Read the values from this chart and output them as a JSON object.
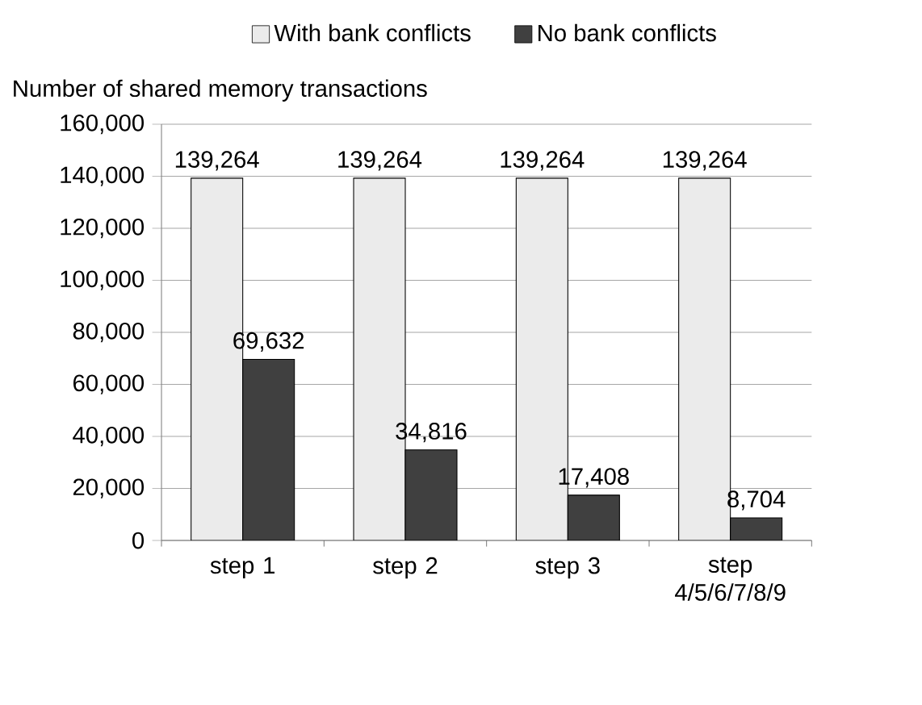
{
  "chart_data": {
    "type": "bar",
    "ylabel": "Number of shared memory transactions",
    "categories": [
      "step 1",
      "step 2",
      "step 3",
      "step 4/5/6/7/8/9"
    ],
    "series": [
      {
        "name": "With bank conflicts",
        "color": "#ebebeb",
        "values": [
          139264,
          139264,
          139264,
          139264
        ],
        "value_labels": [
          "139,264",
          "139,264",
          "139,264",
          "139,264"
        ]
      },
      {
        "name": "No bank conflicts",
        "color": "#404040",
        "values": [
          69632,
          34816,
          17408,
          8704
        ],
        "value_labels": [
          "69,632",
          "34,816",
          "17,408",
          "8,704"
        ]
      }
    ],
    "ylim": [
      0,
      160000
    ],
    "yticks": [
      {
        "value": 0,
        "label": "0"
      },
      {
        "value": 20000,
        "label": "20,000"
      },
      {
        "value": 40000,
        "label": "40,000"
      },
      {
        "value": 60000,
        "label": "60,000"
      },
      {
        "value": 80000,
        "label": "80,000"
      },
      {
        "value": 100000,
        "label": "100,000"
      },
      {
        "value": 120000,
        "label": "120,000"
      },
      {
        "value": 140000,
        "label": "140,000"
      },
      {
        "value": 160000,
        "label": "160,000"
      }
    ],
    "grid": "y",
    "legend": "top"
  }
}
